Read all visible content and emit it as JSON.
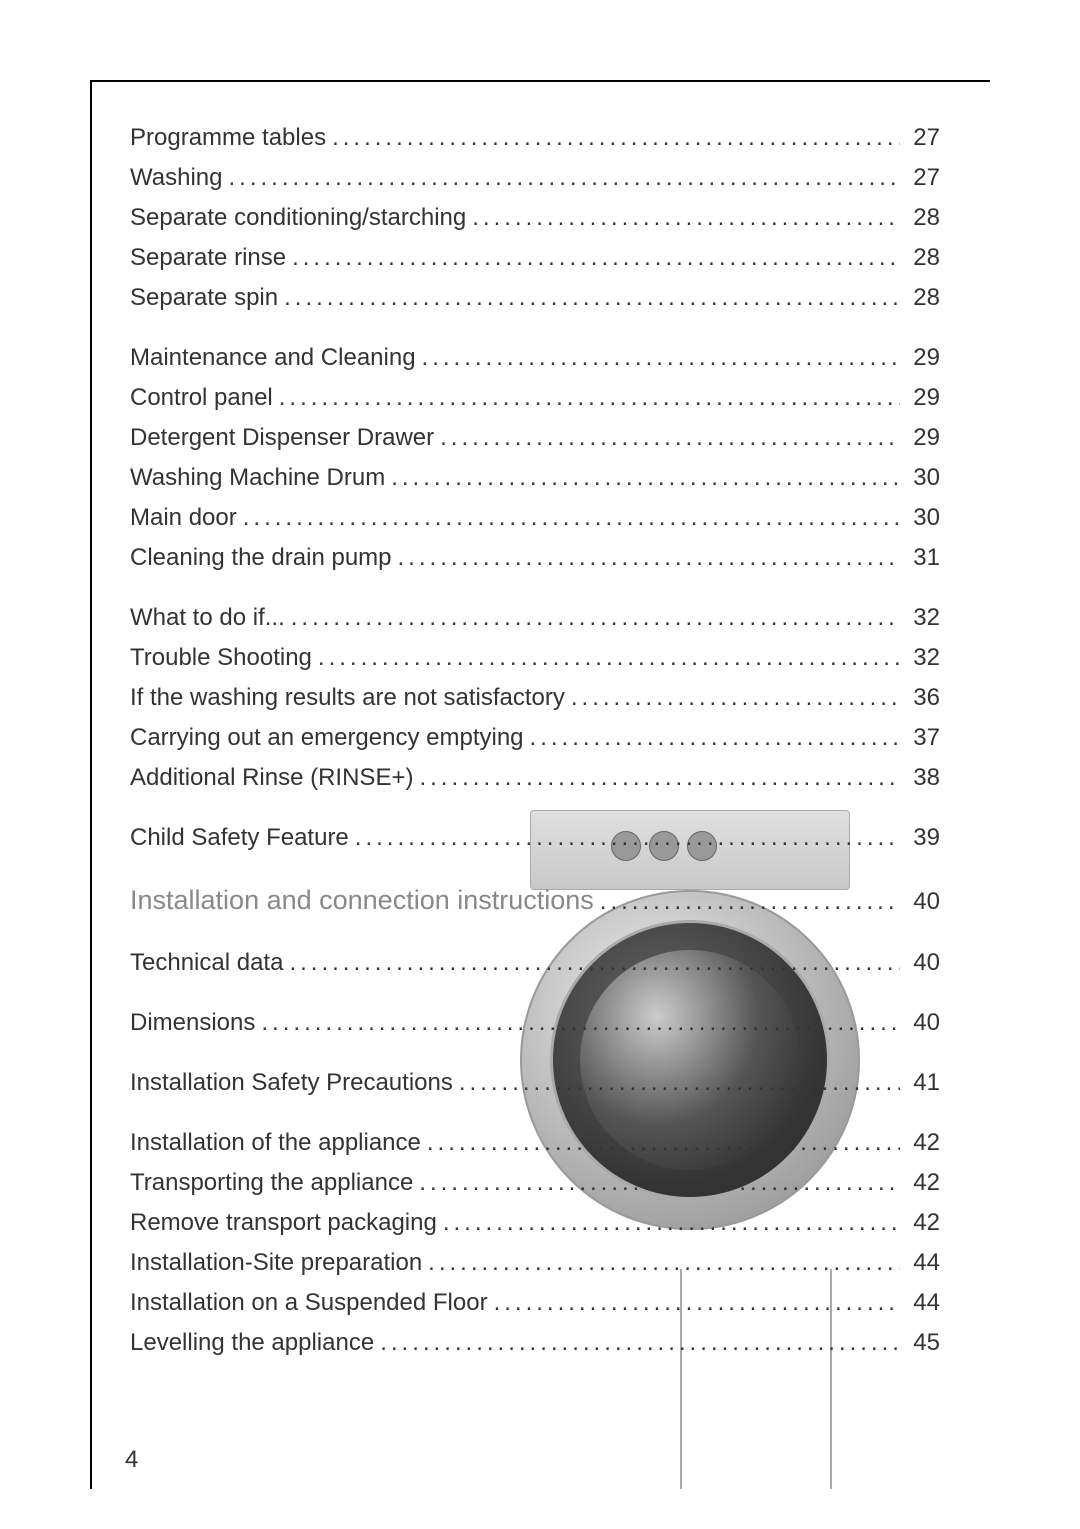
{
  "page_number": "4",
  "groups": [
    {
      "rows": [
        {
          "title": "Programme tables",
          "page": "27",
          "heading": false
        },
        {
          "title": "Washing",
          "page": "27",
          "heading": false
        },
        {
          "title": "Separate conditioning/starching",
          "page": "28",
          "heading": false
        },
        {
          "title": "Separate rinse",
          "page": "28",
          "heading": false
        },
        {
          "title": "Separate spin",
          "page": "28",
          "heading": false
        }
      ]
    },
    {
      "rows": [
        {
          "title": "Maintenance and Cleaning",
          "page": "29",
          "heading": false
        },
        {
          "title": "Control panel",
          "page": "29",
          "heading": false
        },
        {
          "title": "Detergent Dispenser Drawer",
          "page": "29",
          "heading": false
        },
        {
          "title": "Washing Machine Drum",
          "page": "30",
          "heading": false
        },
        {
          "title": "Main door",
          "page": "30",
          "heading": false
        },
        {
          "title": "Cleaning the drain pump",
          "page": "31",
          "heading": false
        }
      ]
    },
    {
      "rows": [
        {
          "title": "What to do if...",
          "page": "32",
          "heading": false
        },
        {
          "title": "Trouble Shooting",
          "page": "32",
          "heading": false
        },
        {
          "title": "If the washing results are not satisfactory",
          "page": "36",
          "heading": false
        },
        {
          "title": "Carrying out an emergency emptying",
          "page": "37",
          "heading": false
        },
        {
          "title": "Additional Rinse (RINSE+)",
          "page": "38",
          "heading": false
        }
      ]
    },
    {
      "single": true,
      "rows": [
        {
          "title": "Child Safety Feature",
          "page": "39",
          "heading": false
        }
      ]
    },
    {
      "single": true,
      "rows": [
        {
          "title": "Installation and connection instructions",
          "page": "40",
          "heading": true
        }
      ]
    },
    {
      "single": true,
      "rows": [
        {
          "title": "Technical data",
          "page": "40",
          "heading": false
        }
      ]
    },
    {
      "single": true,
      "rows": [
        {
          "title": "Dimensions",
          "page": "40",
          "heading": false
        }
      ]
    },
    {
      "single": true,
      "rows": [
        {
          "title": "Installation Safety Precautions",
          "page": "41",
          "heading": false
        }
      ]
    },
    {
      "rows": [
        {
          "title": "Installation of the appliance",
          "page": "42",
          "heading": false
        },
        {
          "title": "Transporting the appliance",
          "page": "42",
          "heading": false
        },
        {
          "title": "Remove transport packaging",
          "page": "42",
          "heading": false
        },
        {
          "title": "Installation-Site preparation",
          "page": "44",
          "heading": false
        },
        {
          "title": "Installation on a Suspended Floor",
          "page": "44",
          "heading": false
        },
        {
          "title": "Levelling the appliance",
          "page": "45",
          "heading": false
        }
      ]
    }
  ],
  "colors": {
    "text": "#333333",
    "heading_text": "#888888",
    "border": "#000000",
    "background": "#ffffff"
  },
  "dots_fill": "...................................................................."
}
